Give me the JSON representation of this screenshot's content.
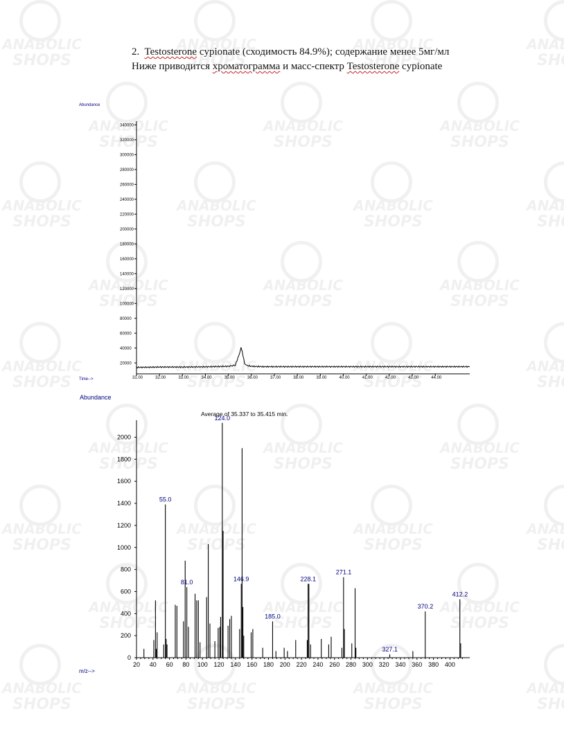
{
  "heading": {
    "line1_num": "2.",
    "line1_a": "Testosterone",
    "line1_b": " cypionate (сходимость 84.9%); содержание менее 5мг/мл",
    "line2_a": "Ниже приводится ",
    "line2_b": "хроматограмма",
    "line2_c": " и масс-спектр ",
    "line2_d": "Testosterone",
    "line2_e": " cypionate"
  },
  "watermark": {
    "line1": "ANABOLIC",
    "line2": "SHOPS"
  },
  "colors": {
    "axis": "#000000",
    "label": "#000080",
    "trace": "#000000",
    "watermark": "#777777"
  },
  "chart_data": [
    {
      "type": "line",
      "ylabel": "Abundance",
      "xlabel": "Time-->",
      "ylim": [
        10000,
        345000
      ],
      "xlim": [
        31.0,
        45.5
      ],
      "yticks": [
        "20000",
        "40000",
        "60000",
        "80000",
        "100000",
        "120000",
        "140000",
        "160000",
        "180000",
        "200000",
        "220000",
        "240000",
        "260000",
        "280000",
        "300000",
        "320000",
        "340000"
      ],
      "xticks": [
        "31.00",
        "32.00",
        "33.00",
        "34.00",
        "35.00",
        "36.00",
        "37.00",
        "38.00",
        "39.00",
        "40.00",
        "41.00",
        "42.00",
        "43.00",
        "44.00"
      ],
      "series": [
        {
          "x": [
            31.0,
            32.0,
            33.0,
            34.0,
            35.0,
            35.3,
            35.45,
            35.55,
            35.6,
            35.7,
            35.8,
            36.0,
            36.5,
            37.0,
            38.0,
            39.0,
            40.0,
            41.0,
            42.0,
            43.0,
            44.0,
            45.5
          ],
          "y": [
            14000,
            14500,
            14500,
            14800,
            15500,
            17000,
            30000,
            41000,
            35000,
            20000,
            16500,
            15500,
            15000,
            15000,
            15000,
            15000,
            15000,
            15000,
            15000,
            15000,
            15000,
            15000
          ]
        }
      ]
    },
    {
      "type": "bar",
      "title": "Average of 35.337 to 35.415 min.",
      "ylabel": "Abundance",
      "xlabel": "m/z-->",
      "ylim": [
        0,
        2100
      ],
      "xlim": [
        20,
        424
      ],
      "yticks": [
        "0",
        "200",
        "400",
        "600",
        "800",
        "1000",
        "1200",
        "1400",
        "1600",
        "1800",
        "2000"
      ],
      "xticks": [
        "20",
        "40",
        "60",
        "80",
        "100",
        "120",
        "140",
        "160",
        "180",
        "200",
        "220",
        "240",
        "260",
        "280",
        "300",
        "320",
        "340",
        "360",
        "380",
        "400"
      ],
      "peak_labels": [
        "55.0",
        "81.0",
        "124.0",
        "146.9",
        "185.0",
        "228.1",
        "271.1",
        "327.1",
        "370.2",
        "412.2"
      ],
      "peaks": [
        {
          "mz": 29,
          "ab": 80
        },
        {
          "mz": 41,
          "ab": 160
        },
        {
          "mz": 43,
          "ab": 520
        },
        {
          "mz": 44,
          "ab": 80
        },
        {
          "mz": 45,
          "ab": 230
        },
        {
          "mz": 53,
          "ab": 120
        },
        {
          "mz": 55,
          "ab": 1390
        },
        {
          "mz": 56,
          "ab": 170
        },
        {
          "mz": 57,
          "ab": 120
        },
        {
          "mz": 67,
          "ab": 480
        },
        {
          "mz": 69,
          "ab": 470
        },
        {
          "mz": 77,
          "ab": 330
        },
        {
          "mz": 79,
          "ab": 880
        },
        {
          "mz": 81,
          "ab": 640
        },
        {
          "mz": 83,
          "ab": 280
        },
        {
          "mz": 91,
          "ab": 580
        },
        {
          "mz": 93,
          "ab": 520
        },
        {
          "mz": 95,
          "ab": 520
        },
        {
          "mz": 97,
          "ab": 140
        },
        {
          "mz": 105,
          "ab": 550
        },
        {
          "mz": 107,
          "ab": 1030
        },
        {
          "mz": 109,
          "ab": 310
        },
        {
          "mz": 115,
          "ab": 150
        },
        {
          "mz": 119,
          "ab": 270
        },
        {
          "mz": 121,
          "ab": 280
        },
        {
          "mz": 122,
          "ab": 370
        },
        {
          "mz": 124,
          "ab": 2130
        },
        {
          "mz": 125,
          "ab": 1150
        },
        {
          "mz": 131,
          "ab": 290
        },
        {
          "mz": 133,
          "ab": 350
        },
        {
          "mz": 135,
          "ab": 380
        },
        {
          "mz": 145,
          "ab": 260
        },
        {
          "mz": 147,
          "ab": 670
        },
        {
          "mz": 148,
          "ab": 1900
        },
        {
          "mz": 149,
          "ab": 460
        },
        {
          "mz": 150,
          "ab": 200
        },
        {
          "mz": 159,
          "ab": 230
        },
        {
          "mz": 161,
          "ab": 260
        },
        {
          "mz": 173,
          "ab": 90
        },
        {
          "mz": 185,
          "ab": 330
        },
        {
          "mz": 189,
          "ab": 60
        },
        {
          "mz": 199,
          "ab": 90
        },
        {
          "mz": 203,
          "ab": 60
        },
        {
          "mz": 213,
          "ab": 160
        },
        {
          "mz": 227,
          "ab": 160
        },
        {
          "mz": 228,
          "ab": 670
        },
        {
          "mz": 229,
          "ab": 670
        },
        {
          "mz": 231,
          "ab": 120
        },
        {
          "mz": 244,
          "ab": 170
        },
        {
          "mz": 253,
          "ab": 120
        },
        {
          "mz": 256,
          "ab": 190
        },
        {
          "mz": 269,
          "ab": 90
        },
        {
          "mz": 271,
          "ab": 730
        },
        {
          "mz": 272,
          "ab": 260
        },
        {
          "mz": 281,
          "ab": 130
        },
        {
          "mz": 285,
          "ab": 630
        },
        {
          "mz": 286,
          "ab": 90
        },
        {
          "mz": 327,
          "ab": 30
        },
        {
          "mz": 355,
          "ab": 60
        },
        {
          "mz": 370,
          "ab": 420
        },
        {
          "mz": 412,
          "ab": 530
        },
        {
          "mz": 413,
          "ab": 130
        }
      ]
    }
  ]
}
